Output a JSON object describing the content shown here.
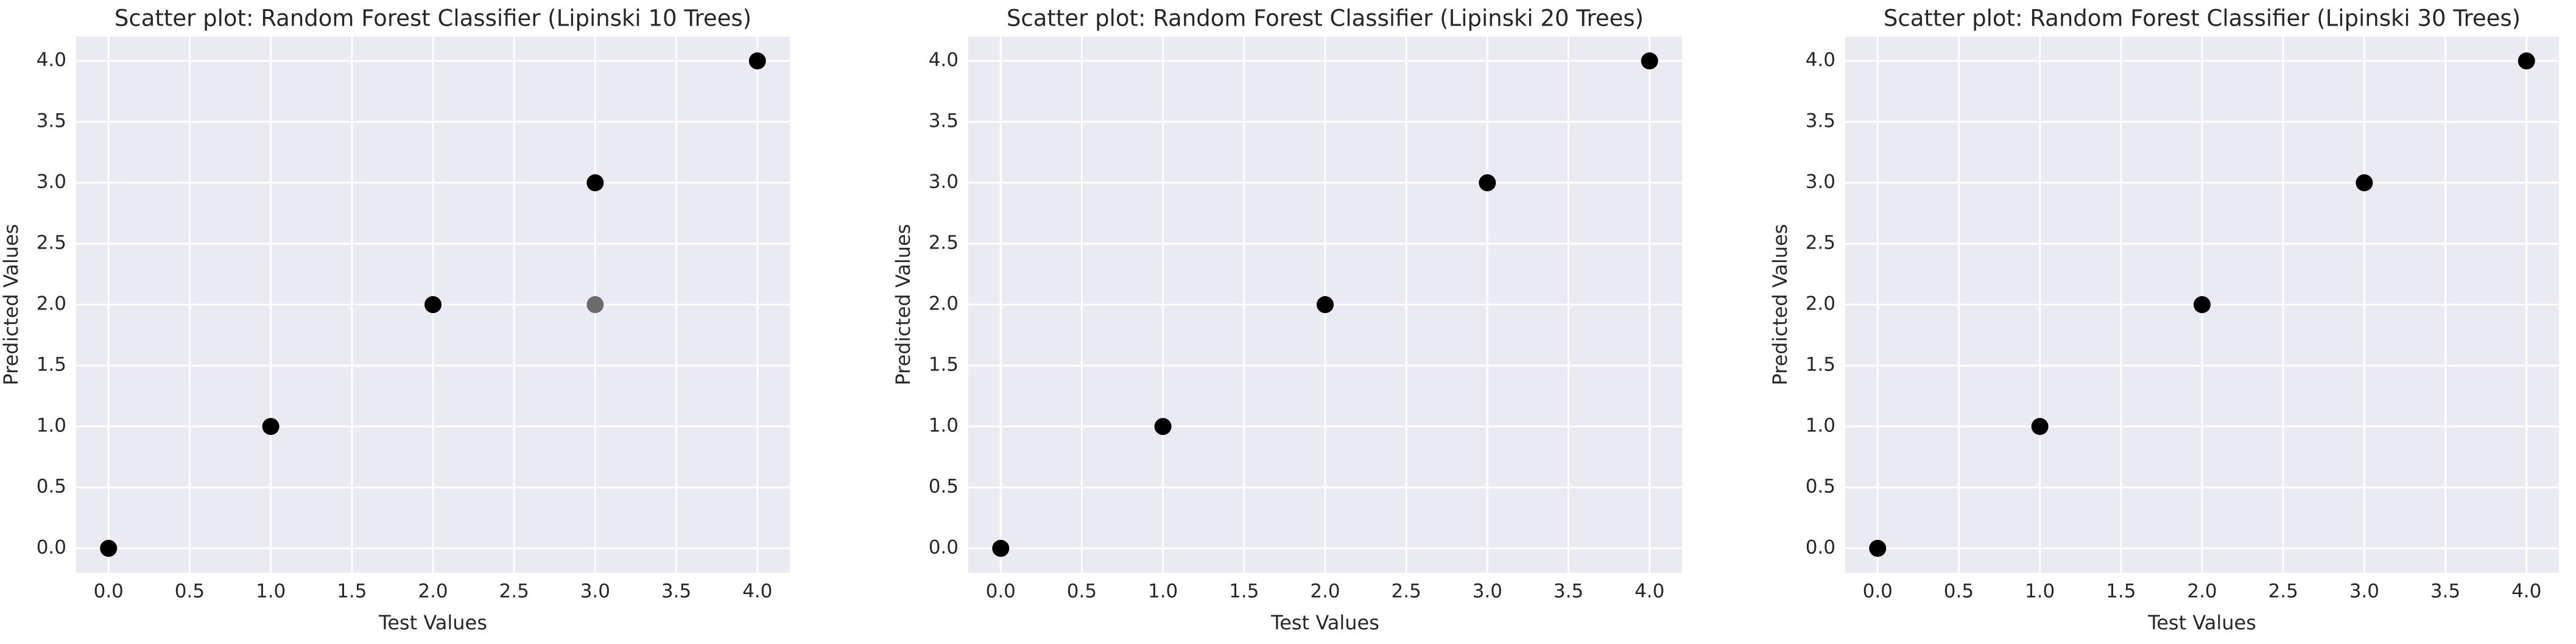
{
  "chart_data": [
    {
      "type": "scatter",
      "title": "Scatter plot: Random Forest Classifier (Lipinski 10 Trees)",
      "xlabel": "Test Values",
      "ylabel": "Predicted Values",
      "series": [
        {
          "x": [
            0,
            1,
            2,
            3,
            3,
            4
          ],
          "values": [
            0,
            1,
            2,
            3,
            2,
            4
          ],
          "colors": [
            "#000000",
            "#000000",
            "#000000",
            "#000000",
            "#6b6b6b",
            "#000000"
          ]
        }
      ],
      "xlim": [
        -0.2,
        4.2
      ],
      "ylim": [
        -0.2,
        4.2
      ],
      "xticks": [
        {
          "value": 0,
          "label": "0.0"
        },
        {
          "value": 0.5,
          "label": "0.5"
        },
        {
          "value": 1,
          "label": "1.0"
        },
        {
          "value": 1.5,
          "label": "1.5"
        },
        {
          "value": 2,
          "label": "2.0"
        },
        {
          "value": 2.5,
          "label": "2.5"
        },
        {
          "value": 3,
          "label": "3.0"
        },
        {
          "value": 3.5,
          "label": "3.5"
        },
        {
          "value": 4,
          "label": "4.0"
        }
      ],
      "yticks": [
        {
          "value": 0,
          "label": "0.0"
        },
        {
          "value": 0.5,
          "label": "0.5"
        },
        {
          "value": 1,
          "label": "1.0"
        },
        {
          "value": 1.5,
          "label": "1.5"
        },
        {
          "value": 2,
          "label": "2.0"
        },
        {
          "value": 2.5,
          "label": "2.5"
        },
        {
          "value": 3,
          "label": "3.0"
        },
        {
          "value": 3.5,
          "label": "3.5"
        },
        {
          "value": 4,
          "label": "4.0"
        }
      ],
      "grid": true
    },
    {
      "type": "scatter",
      "title": "Scatter plot: Random Forest Classifier (Lipinski 20 Trees)",
      "xlabel": "Test Values",
      "ylabel": "Predicted Values",
      "series": [
        {
          "x": [
            0,
            1,
            2,
            3,
            4
          ],
          "values": [
            0,
            1,
            2,
            3,
            4
          ],
          "color": "#000000"
        }
      ],
      "xlim": [
        -0.2,
        4.2
      ],
      "ylim": [
        -0.2,
        4.2
      ],
      "xticks": [
        {
          "value": 0,
          "label": "0.0"
        },
        {
          "value": 0.5,
          "label": "0.5"
        },
        {
          "value": 1,
          "label": "1.0"
        },
        {
          "value": 1.5,
          "label": "1.5"
        },
        {
          "value": 2,
          "label": "2.0"
        },
        {
          "value": 2.5,
          "label": "2.5"
        },
        {
          "value": 3,
          "label": "3.0"
        },
        {
          "value": 3.5,
          "label": "3.5"
        },
        {
          "value": 4,
          "label": "4.0"
        }
      ],
      "yticks": [
        {
          "value": 0,
          "label": "0.0"
        },
        {
          "value": 0.5,
          "label": "0.5"
        },
        {
          "value": 1,
          "label": "1.0"
        },
        {
          "value": 1.5,
          "label": "1.5"
        },
        {
          "value": 2,
          "label": "2.0"
        },
        {
          "value": 2.5,
          "label": "2.5"
        },
        {
          "value": 3,
          "label": "3.0"
        },
        {
          "value": 3.5,
          "label": "3.5"
        },
        {
          "value": 4,
          "label": "4.0"
        }
      ],
      "grid": true
    },
    {
      "type": "scatter",
      "title": "Scatter plot: Random Forest Classifier (Lipinski 30 Trees)",
      "xlabel": "Test Values",
      "ylabel": "Predicted Values",
      "series": [
        {
          "x": [
            0,
            1,
            2,
            3,
            4
          ],
          "values": [
            0,
            1,
            2,
            3,
            4
          ],
          "color": "#000000"
        }
      ],
      "xlim": [
        -0.2,
        4.2
      ],
      "ylim": [
        -0.2,
        4.2
      ],
      "xticks": [
        {
          "value": 0,
          "label": "0.0"
        },
        {
          "value": 0.5,
          "label": "0.5"
        },
        {
          "value": 1,
          "label": "1.0"
        },
        {
          "value": 1.5,
          "label": "1.5"
        },
        {
          "value": 2,
          "label": "2.0"
        },
        {
          "value": 2.5,
          "label": "2.5"
        },
        {
          "value": 3,
          "label": "3.0"
        },
        {
          "value": 3.5,
          "label": "3.5"
        },
        {
          "value": 4,
          "label": "4.0"
        }
      ],
      "yticks": [
        {
          "value": 0,
          "label": "0.0"
        },
        {
          "value": 0.5,
          "label": "0.5"
        },
        {
          "value": 1,
          "label": "1.0"
        },
        {
          "value": 1.5,
          "label": "1.5"
        },
        {
          "value": 2,
          "label": "2.0"
        },
        {
          "value": 2.5,
          "label": "2.5"
        },
        {
          "value": 3,
          "label": "3.0"
        },
        {
          "value": 3.5,
          "label": "3.5"
        },
        {
          "value": 4,
          "label": "4.0"
        }
      ],
      "grid": true
    }
  ]
}
